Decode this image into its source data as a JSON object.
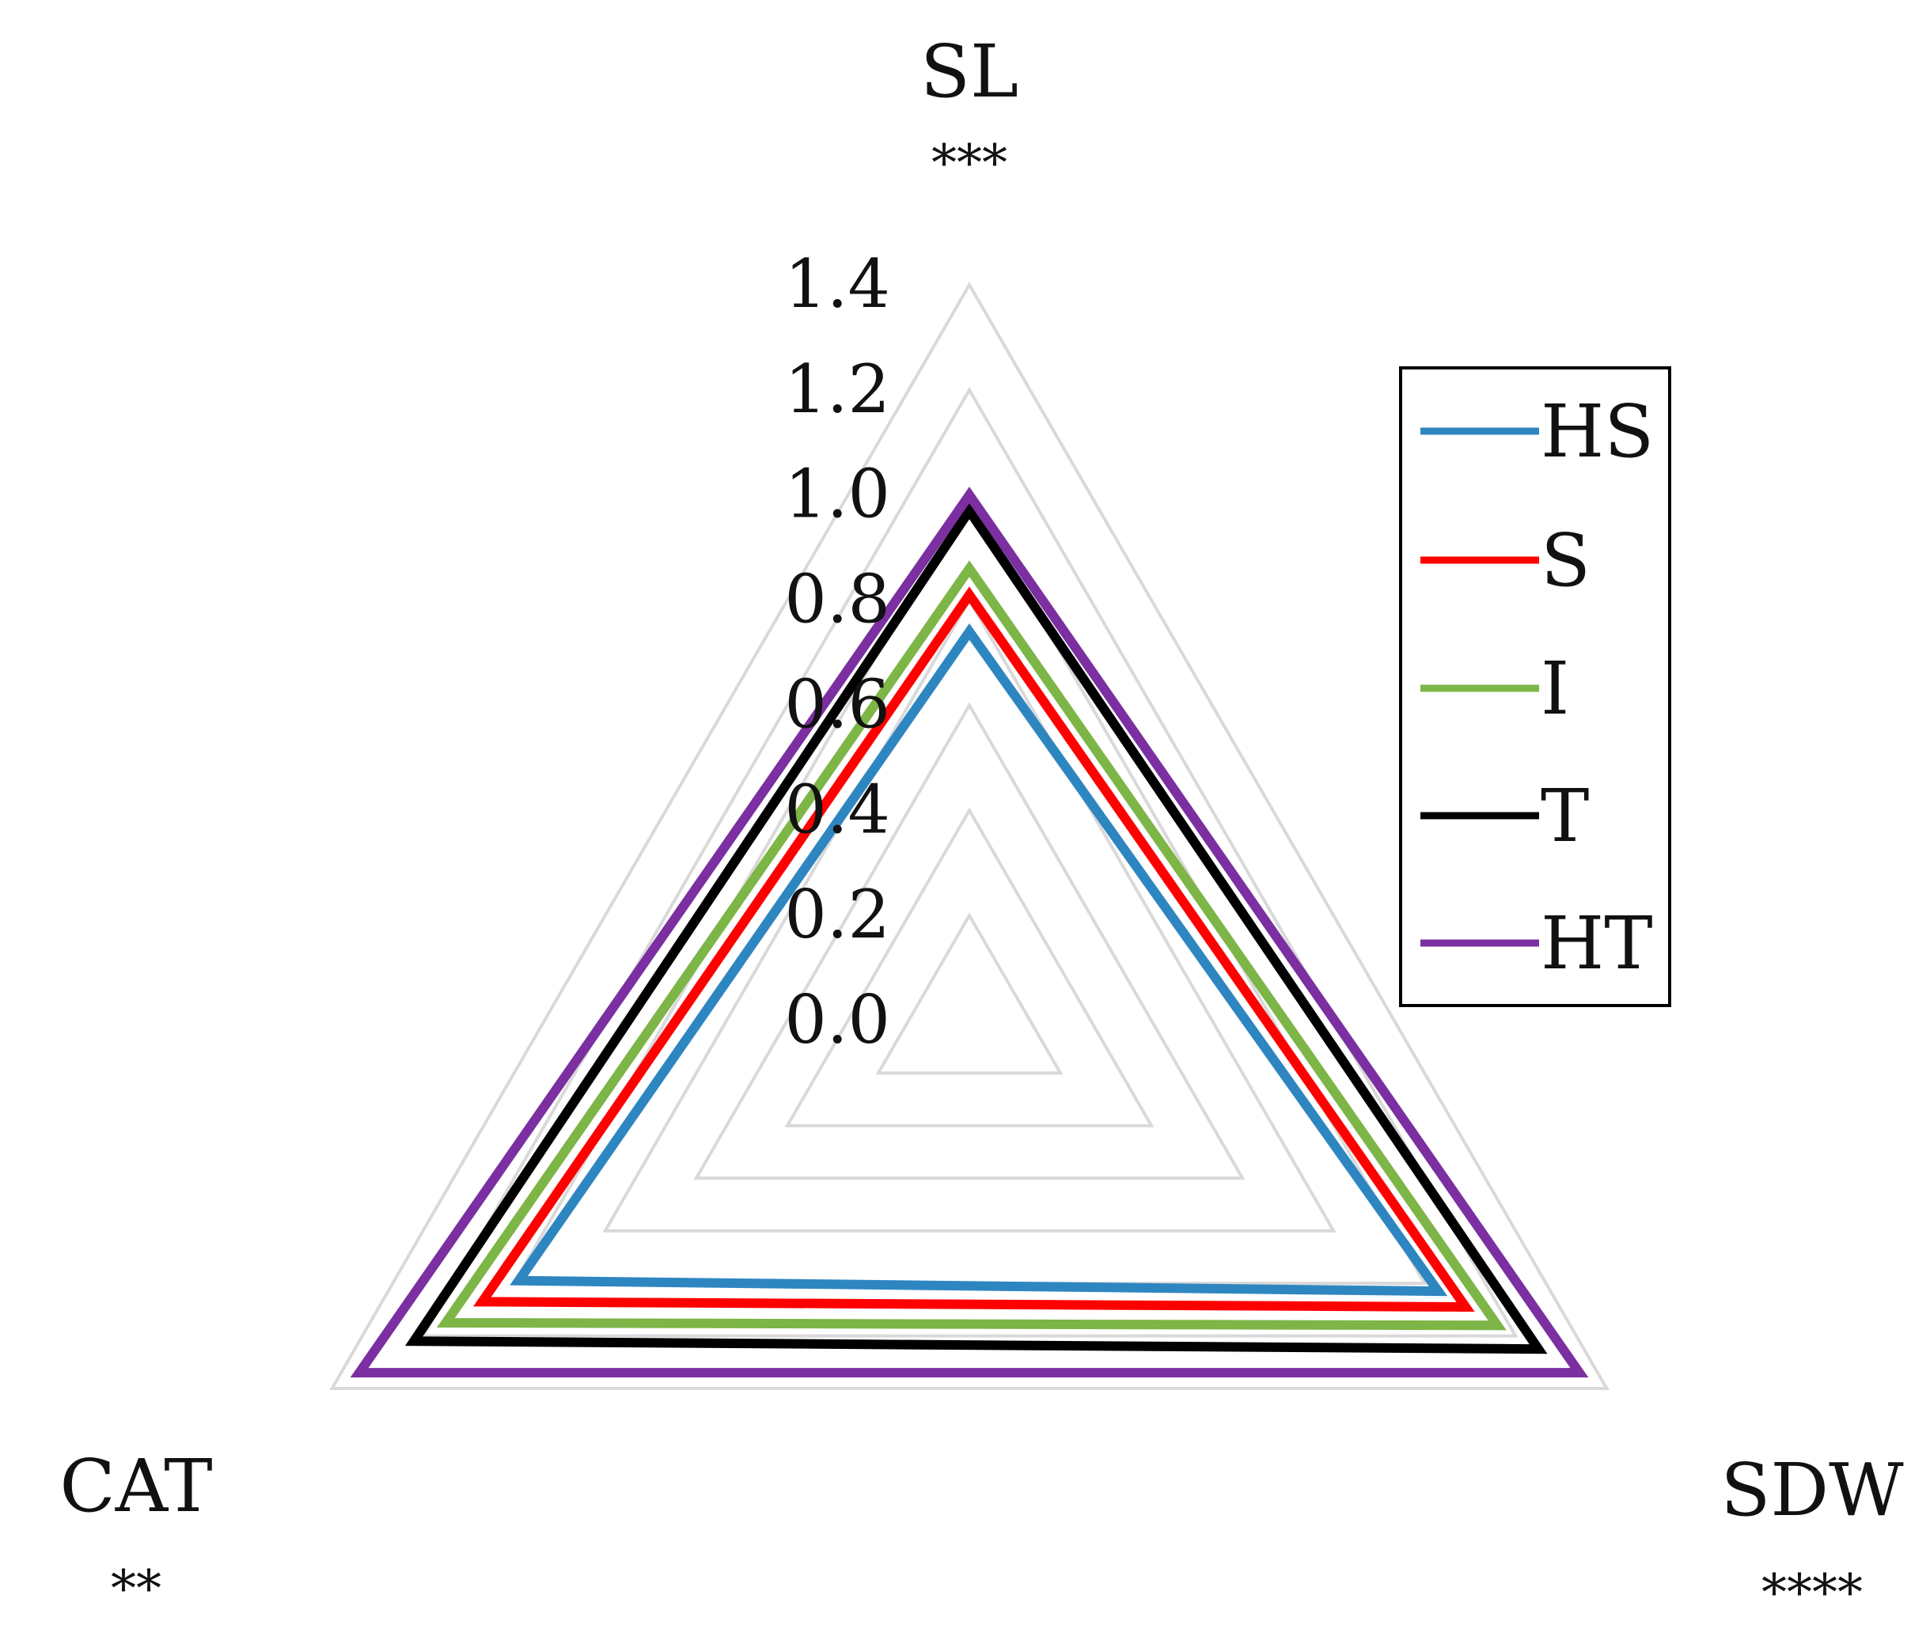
{
  "chart_data": {
    "type": "radar",
    "axes": [
      {
        "label": "SL",
        "significance": "***"
      },
      {
        "label": "SDW",
        "significance": "****"
      },
      {
        "label": "CAT",
        "significance": "**"
      }
    ],
    "ticks": [
      "0.0",
      "0.2",
      "0.4",
      "0.6",
      "0.8",
      "1.0",
      "1.2",
      "1.4"
    ],
    "rlim": [
      0,
      1.4
    ],
    "grid": true,
    "legend_position": "right",
    "series": [
      {
        "name": "HS",
        "color": "#2E86C1",
        "values": [
          0.74,
          1.03,
          0.99
        ]
      },
      {
        "name": "S",
        "color": "#FF0000",
        "values": [
          0.81,
          1.09,
          1.07
        ]
      },
      {
        "name": "I",
        "color": "#7DB547",
        "values": [
          0.86,
          1.16,
          1.15
        ]
      },
      {
        "name": "T",
        "color": "#000000",
        "values": [
          0.97,
          1.25,
          1.22
        ]
      },
      {
        "name": "HT",
        "color": "#7B2FA0",
        "values": [
          1.0,
          1.34,
          1.34
        ]
      }
    ]
  }
}
